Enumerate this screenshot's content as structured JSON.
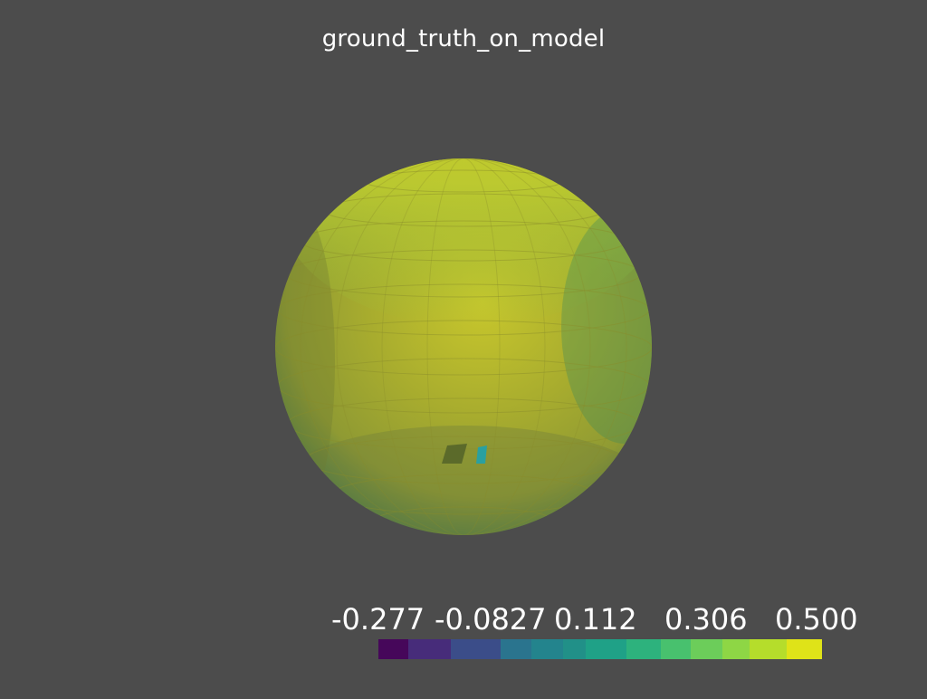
{
  "title": "ground_truth_on_model",
  "colorbar": {
    "labels": [
      "-0.277",
      "-0.0827",
      "0.112",
      "0.306",
      "0.500"
    ],
    "range": [
      -0.277,
      0.5
    ],
    "colormap": "viridis",
    "segments": [
      {
        "color": "#46075a"
      },
      {
        "color": "#472c7a"
      },
      {
        "color": "#3b4d89"
      },
      {
        "color": "#2a748e"
      },
      {
        "color": "#23848d"
      },
      {
        "color": "#219088"
      },
      {
        "color": "#1fa187"
      },
      {
        "color": "#2db27d"
      },
      {
        "color": "#48c16e"
      },
      {
        "color": "#6ccd5a"
      },
      {
        "color": "#8ed645"
      },
      {
        "color": "#b5dd2b"
      },
      {
        "color": "#dfe318"
      }
    ]
  },
  "scene": {
    "object": "sphere",
    "background_color": "#4c4c4c",
    "top_color": "#cfd52a",
    "equator_color": "#a7a72a",
    "rim_color": "#3f7a52"
  }
}
